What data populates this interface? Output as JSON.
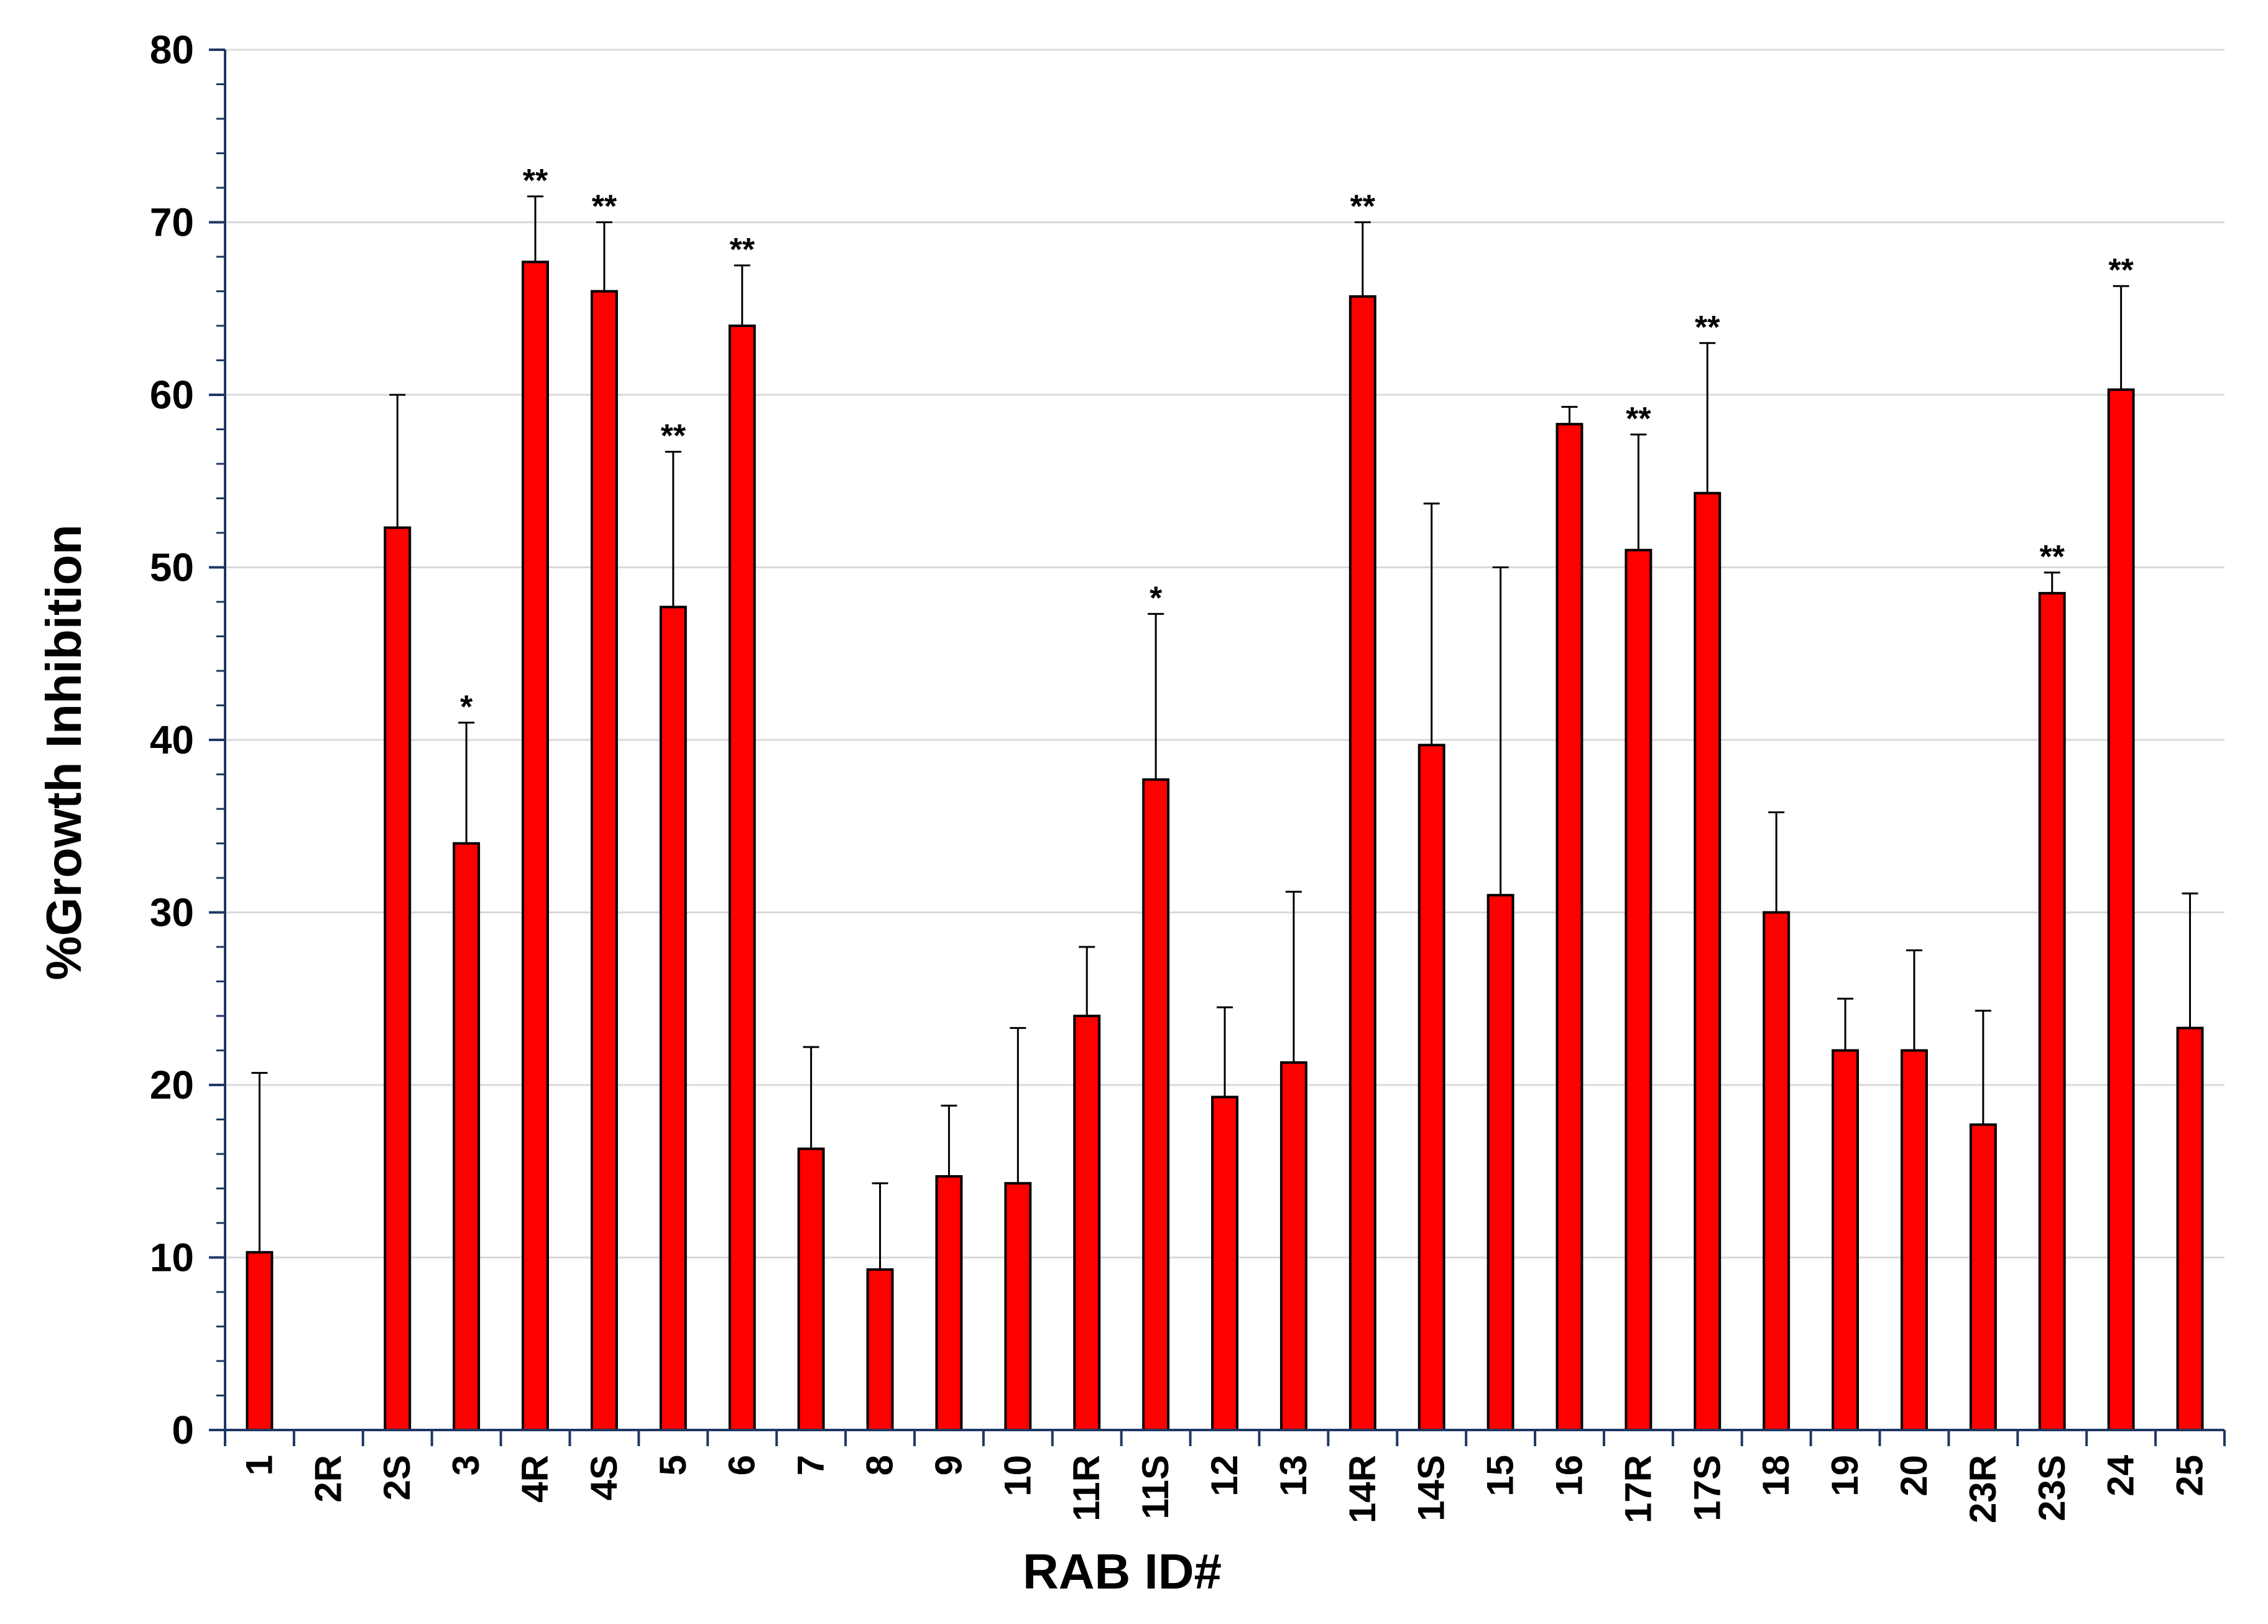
{
  "chart_data": {
    "type": "bar",
    "title": "",
    "xlabel": "RAB ID#",
    "ylabel": "%Growth Inhibition",
    "ylim": [
      0,
      80
    ],
    "yticks": [
      0,
      10,
      20,
      30,
      40,
      50,
      60,
      70,
      80
    ],
    "grid": "horizontal",
    "legend": "none",
    "colors": {
      "bar": "#ff0000",
      "bar_edge": "#000000",
      "grid": "#d9d9d9",
      "axis": "#1f3864"
    },
    "categories": [
      "1",
      "2R",
      "2S",
      "3",
      "4R",
      "4S",
      "5",
      "6",
      "7",
      "8",
      "9",
      "10",
      "11R",
      "11S",
      "12",
      "13",
      "14R",
      "14S",
      "15",
      "16",
      "17R",
      "17S",
      "18",
      "19",
      "20",
      "23R",
      "23S",
      "24",
      "25"
    ],
    "values": [
      10.3,
      0,
      52.3,
      34.0,
      67.7,
      66.0,
      47.7,
      64.0,
      16.3,
      9.3,
      14.7,
      14.3,
      24.0,
      37.7,
      19.3,
      21.3,
      65.7,
      39.7,
      31.0,
      58.3,
      51.0,
      54.3,
      30.0,
      22.0,
      22.0,
      17.7,
      48.5,
      60.3,
      23.3
    ],
    "error_upper": [
      20.7,
      null,
      60.0,
      41.0,
      71.5,
      70.0,
      56.7,
      67.5,
      22.2,
      14.3,
      18.8,
      23.3,
      28.0,
      47.3,
      24.5,
      31.2,
      70.0,
      53.7,
      50.0,
      59.3,
      57.7,
      63.0,
      35.8,
      25.0,
      27.8,
      24.3,
      49.7,
      66.3,
      31.1
    ],
    "significance": [
      "",
      "",
      "",
      "*",
      "**",
      "**",
      "**",
      "**",
      "",
      "",
      "",
      "",
      "",
      "*",
      "",
      "",
      "**",
      "",
      "",
      "",
      "**",
      "**",
      "",
      "",
      "",
      "",
      "**",
      "**",
      ""
    ]
  }
}
